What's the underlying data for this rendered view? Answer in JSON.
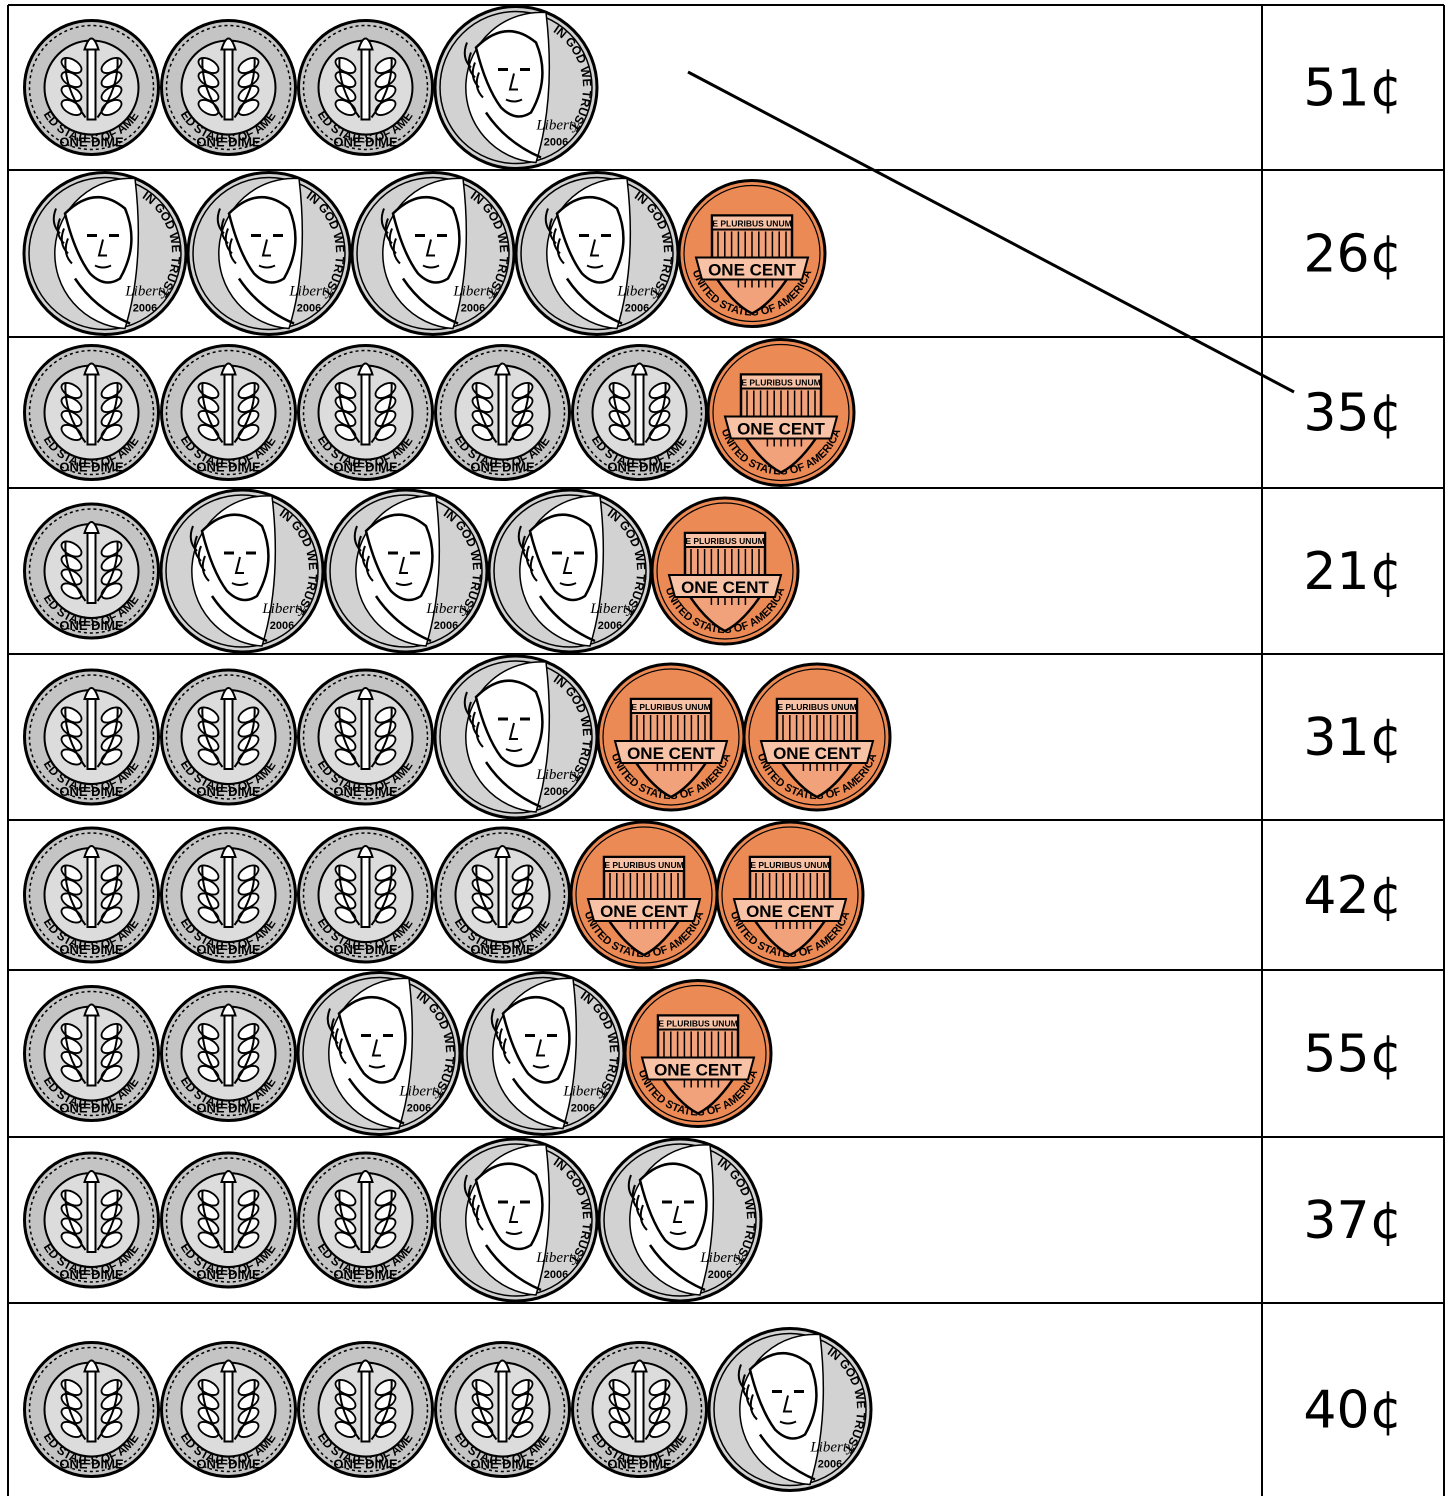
{
  "coin_icons": {
    "dime": "dime-coin-icon",
    "nickel": "nickel-coin-icon",
    "penny": "penny-coin-icon"
  },
  "coin_text": {
    "dime_top": "UNITED STATES OF AMERICA",
    "dime_bottom": "ONE DIME",
    "nickel_motto": "IN GOD WE TRUST",
    "nickel_liberty": "Liberty",
    "nickel_year": "2006",
    "penny_top": "UNITED STATES OF AMERICA",
    "penny_motto": "E PLURIBUS UNUM",
    "penny_banner": "ONE CENT"
  },
  "colors": {
    "dime": "#c4c4c4",
    "nickel": "#d2d2d2",
    "penny": "#ec8a55",
    "ink": "#000000"
  },
  "rows": [
    {
      "coins": [
        "dime",
        "dime",
        "dime",
        "nickel"
      ],
      "amount": "51¢"
    },
    {
      "coins": [
        "nickel",
        "nickel",
        "nickel",
        "nickel",
        "penny"
      ],
      "amount": "26¢"
    },
    {
      "coins": [
        "dime",
        "dime",
        "dime",
        "dime",
        "dime",
        "penny"
      ],
      "amount": "35¢"
    },
    {
      "coins": [
        "dime",
        "nickel",
        "nickel",
        "nickel",
        "penny"
      ],
      "amount": "21¢"
    },
    {
      "coins": [
        "dime",
        "dime",
        "dime",
        "nickel",
        "penny",
        "penny"
      ],
      "amount": "31¢"
    },
    {
      "coins": [
        "dime",
        "dime",
        "dime",
        "dime",
        "penny",
        "penny"
      ],
      "amount": "42¢"
    },
    {
      "coins": [
        "dime",
        "dime",
        "nickel",
        "nickel",
        "penny"
      ],
      "amount": "55¢"
    },
    {
      "coins": [
        "dime",
        "dime",
        "dime",
        "nickel",
        "nickel"
      ],
      "amount": "37¢"
    },
    {
      "coins": [
        "dime",
        "dime",
        "dime",
        "dime",
        "dime",
        "nickel"
      ],
      "amount": "40¢"
    }
  ],
  "matching_line": {
    "from_row": 1,
    "to_row": 3
  }
}
